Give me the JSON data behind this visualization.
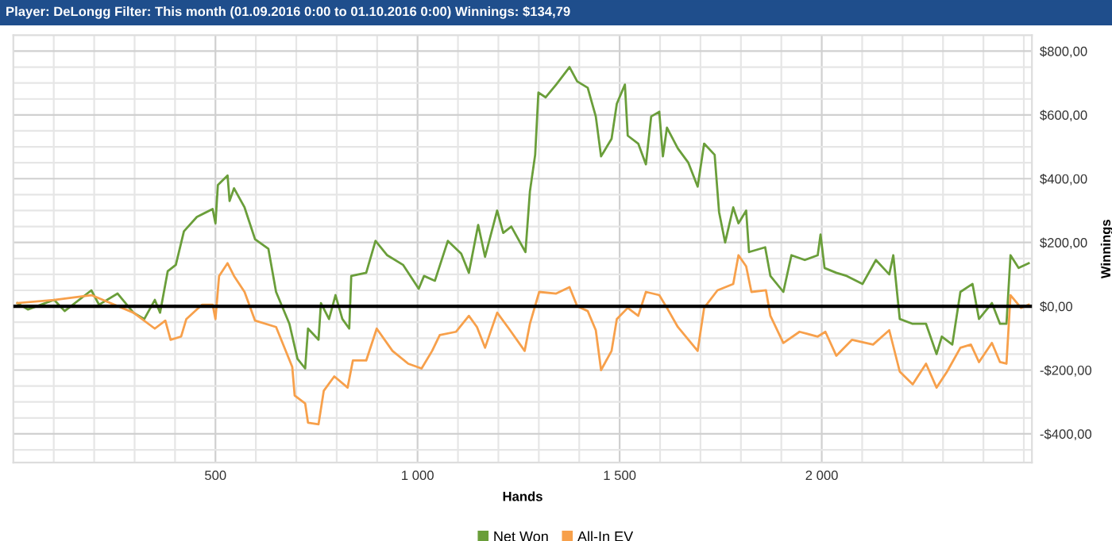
{
  "chart_data": {
    "type": "line",
    "title": "Player: DeLongg Filter: This month (01.09.2016 0:00 to 01.10.2016 0:00) Winnings: $134,79",
    "xlabel": "Hands",
    "ylabel": "Winnings",
    "legend": "bottom",
    "grid": true,
    "marker": "none",
    "line_style": "solid",
    "xlim": [
      0,
      2520
    ],
    "ylim": [
      -490,
      850
    ],
    "xticks": [
      {
        "value": 100,
        "label": null
      },
      {
        "value": 200,
        "label": null
      },
      {
        "value": 300,
        "label": null
      },
      {
        "value": 400,
        "label": null
      },
      500,
      {
        "value": 600,
        "label": null
      },
      {
        "value": 700,
        "label": null
      },
      {
        "value": 800,
        "label": null
      },
      {
        "value": 900,
        "label": null
      },
      {
        "value": 1000,
        "label": "1 000"
      },
      {
        "value": 1100,
        "label": null
      },
      {
        "value": 1200,
        "label": null
      },
      {
        "value": 1300,
        "label": null
      },
      {
        "value": 1400,
        "label": null
      },
      {
        "value": 1500,
        "label": "1 500"
      },
      {
        "value": 1600,
        "label": null
      },
      {
        "value": 1700,
        "label": null
      },
      {
        "value": 1800,
        "label": null
      },
      {
        "value": 1900,
        "label": null
      },
      {
        "value": 2000,
        "label": "2 000"
      },
      {
        "value": 2100,
        "label": null
      },
      {
        "value": 2200,
        "label": null
      },
      {
        "value": 2300,
        "label": null
      },
      {
        "value": 2400,
        "label": null
      },
      {
        "value": 2500,
        "label": null
      }
    ],
    "yticks": [
      {
        "value": -450,
        "label": null
      },
      {
        "value": -400,
        "label": "-$400,00"
      },
      {
        "value": -350,
        "label": null
      },
      {
        "value": -300,
        "label": null
      },
      {
        "value": -250,
        "label": null
      },
      {
        "value": -200,
        "label": "-$200,00"
      },
      {
        "value": -150,
        "label": null
      },
      {
        "value": -100,
        "label": null
      },
      {
        "value": -50,
        "label": null
      },
      {
        "value": 0,
        "label": "$0,00"
      },
      {
        "value": 50,
        "label": null
      },
      {
        "value": 100,
        "label": null
      },
      {
        "value": 150,
        "label": null
      },
      {
        "value": 200,
        "label": "$200,00"
      },
      {
        "value": 250,
        "label": null
      },
      {
        "value": 300,
        "label": null
      },
      {
        "value": 350,
        "label": null
      },
      {
        "value": 400,
        "label": "$400,00"
      },
      {
        "value": 450,
        "label": null
      },
      {
        "value": 500,
        "label": null
      },
      {
        "value": 550,
        "label": null
      },
      {
        "value": 600,
        "label": "$600,00"
      },
      {
        "value": 650,
        "label": null
      },
      {
        "value": 700,
        "label": null
      },
      {
        "value": 750,
        "label": null
      },
      {
        "value": 800,
        "label": "$800,00"
      }
    ],
    "ref_lines": [
      {
        "axis": "y",
        "value": 0,
        "label": null,
        "color": "#000000"
      }
    ],
    "series": [
      {
        "name": "Net Won",
        "color": "#6a9e3a",
        "x": [
          10,
          36,
          101,
          127,
          193,
          212,
          258,
          297,
          324,
          350,
          363,
          382,
          402,
          422,
          454,
          493,
          500,
          506,
          530,
          535,
          546,
          572,
          598,
          631,
          650,
          683,
          703,
          722,
          729,
          755,
          761,
          781,
          797,
          814,
          831,
          836,
          873,
          896,
          925,
          964,
          1003,
          1016,
          1043,
          1075,
          1108,
          1127,
          1150,
          1167,
          1197,
          1212,
          1232,
          1245,
          1267,
          1278,
          1291,
          1299,
          1317,
          1343,
          1376,
          1395,
          1421,
          1441,
          1454,
          1480,
          1493,
          1513,
          1520,
          1546,
          1565,
          1578,
          1598,
          1607,
          1617,
          1644,
          1670,
          1693,
          1709,
          1735,
          1746,
          1761,
          1781,
          1794,
          1813,
          1820,
          1860,
          1873,
          1905,
          1925,
          1958,
          1990,
          1997,
          2007,
          2036,
          2062,
          2101,
          2134,
          2167,
          2177,
          2193,
          2225,
          2258,
          2284,
          2297,
          2323,
          2343,
          2373,
          2389,
          2421,
          2441,
          2457,
          2467,
          2487,
          2512
        ],
        "values": [
          10,
          -10,
          20,
          -15,
          50,
          5,
          40,
          -20,
          -40,
          20,
          -20,
          110,
          130,
          235,
          280,
          305,
          260,
          380,
          410,
          330,
          370,
          310,
          210,
          180,
          45,
          -55,
          -165,
          -195,
          -70,
          -105,
          10,
          -40,
          35,
          -40,
          -70,
          95,
          105,
          205,
          160,
          130,
          55,
          95,
          80,
          205,
          165,
          105,
          255,
          155,
          300,
          230,
          250,
          220,
          170,
          360,
          475,
          670,
          655,
          695,
          750,
          705,
          685,
          595,
          470,
          525,
          635,
          695,
          535,
          510,
          445,
          595,
          610,
          470,
          560,
          495,
          450,
          375,
          510,
          475,
          295,
          200,
          310,
          260,
          300,
          170,
          185,
          95,
          45,
          160,
          145,
          160,
          225,
          120,
          105,
          95,
          70,
          145,
          100,
          160,
          -40,
          -55,
          -55,
          -150,
          -95,
          -120,
          45,
          70,
          -40,
          10,
          -55,
          -55,
          160,
          120,
          135
        ]
      },
      {
        "name": "All-In EV",
        "color": "#f7a04b",
        "x": [
          10,
          101,
          193,
          297,
          350,
          376,
          389,
          415,
          428,
          467,
          493,
          500,
          509,
          530,
          546,
          572,
          598,
          650,
          690,
          696,
          722,
          729,
          755,
          768,
          794,
          827,
          840,
          873,
          899,
          938,
          977,
          1010,
          1036,
          1055,
          1095,
          1127,
          1147,
          1167,
          1197,
          1226,
          1265,
          1278,
          1301,
          1343,
          1376,
          1395,
          1421,
          1441,
          1454,
          1480,
          1493,
          1520,
          1546,
          1565,
          1598,
          1617,
          1644,
          1693,
          1709,
          1742,
          1781,
          1794,
          1813,
          1826,
          1862,
          1873,
          1905,
          1945,
          1990,
          2009,
          2036,
          2075,
          2127,
          2167,
          2193,
          2225,
          2258,
          2284,
          2310,
          2343,
          2369,
          2389,
          2421,
          2441,
          2457,
          2467,
          2493,
          2512
        ],
        "values": [
          10,
          20,
          35,
          -20,
          -70,
          -45,
          -105,
          -95,
          -40,
          5,
          5,
          -40,
          95,
          135,
          95,
          45,
          -45,
          -65,
          -190,
          -280,
          -305,
          -365,
          -370,
          -265,
          -220,
          -255,
          -170,
          -170,
          -70,
          -140,
          -180,
          -195,
          -140,
          -90,
          -80,
          -30,
          -65,
          -130,
          -20,
          -70,
          -140,
          -55,
          45,
          40,
          60,
          0,
          -15,
          -75,
          -200,
          -140,
          -40,
          -5,
          -30,
          45,
          35,
          -5,
          -65,
          -140,
          -5,
          50,
          70,
          160,
          125,
          45,
          50,
          -30,
          -115,
          -80,
          -95,
          -80,
          -155,
          -105,
          -120,
          -75,
          -205,
          -245,
          -180,
          -255,
          -205,
          -130,
          -120,
          -175,
          -115,
          -175,
          -180,
          35,
          -5,
          5
        ]
      }
    ]
  }
}
